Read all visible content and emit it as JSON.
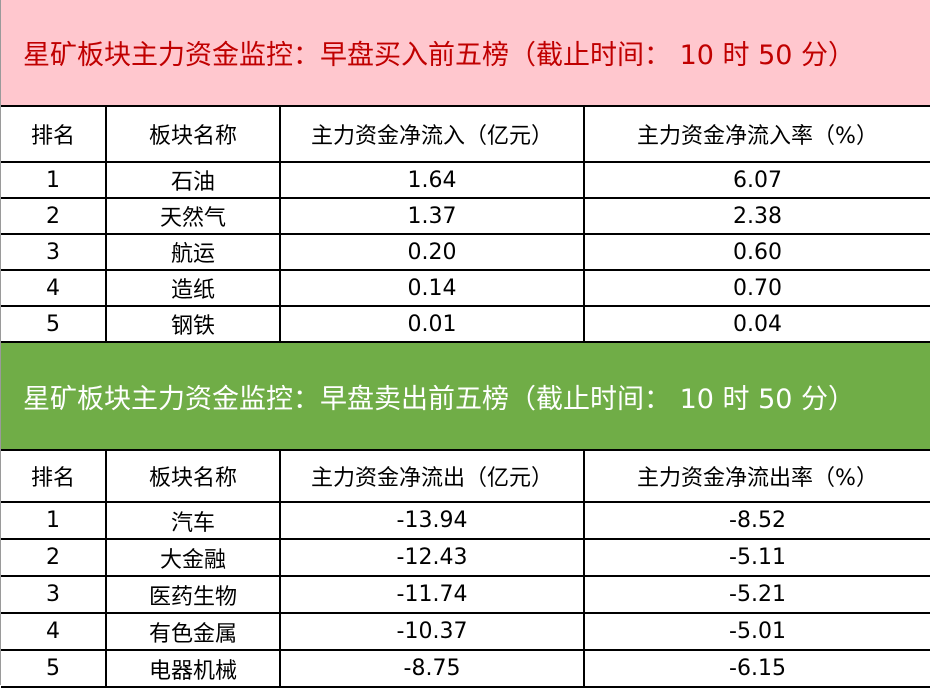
{
  "buy": {
    "title": "星矿板块主力资金监控：早盘买入前五榜（截止时间： 10 时 50 分）",
    "headers": [
      "排名",
      "板块名称",
      "主力资金净流入（亿元）",
      "主力资金净流入率（%）"
    ],
    "rows": [
      [
        "1",
        "石油",
        "1.64",
        "6.07"
      ],
      [
        "2",
        "天然气",
        "1.37",
        "2.38"
      ],
      [
        "3",
        "航运",
        "0.20",
        "0.60"
      ],
      [
        "4",
        "造纸",
        "0.14",
        "0.70"
      ],
      [
        "5",
        "钢铁",
        "0.01",
        "0.04"
      ]
    ]
  },
  "sell": {
    "title": "星矿板块主力资金监控：早盘卖出前五榜（截止时间： 10 时 50 分）",
    "headers": [
      "排名",
      "板块名称",
      "主力资金净流出（亿元）",
      "主力资金净流出率（%）"
    ],
    "rows": [
      [
        "1",
        "汽车",
        "-13.94",
        "-8.52"
      ],
      [
        "2",
        "大金融",
        "-12.43",
        "-5.11"
      ],
      [
        "3",
        "医药生物",
        "-11.74",
        "-5.21"
      ],
      [
        "4",
        "有色金属",
        "-10.37",
        "-5.01"
      ],
      [
        "5",
        "电器机械",
        "-8.75",
        "-6.15"
      ]
    ]
  },
  "colors": {
    "buy_band": "#FFC7CE",
    "buy_text": "#C00000",
    "sell_band": "#70AD47",
    "sell_text": "#FFFFFF"
  }
}
